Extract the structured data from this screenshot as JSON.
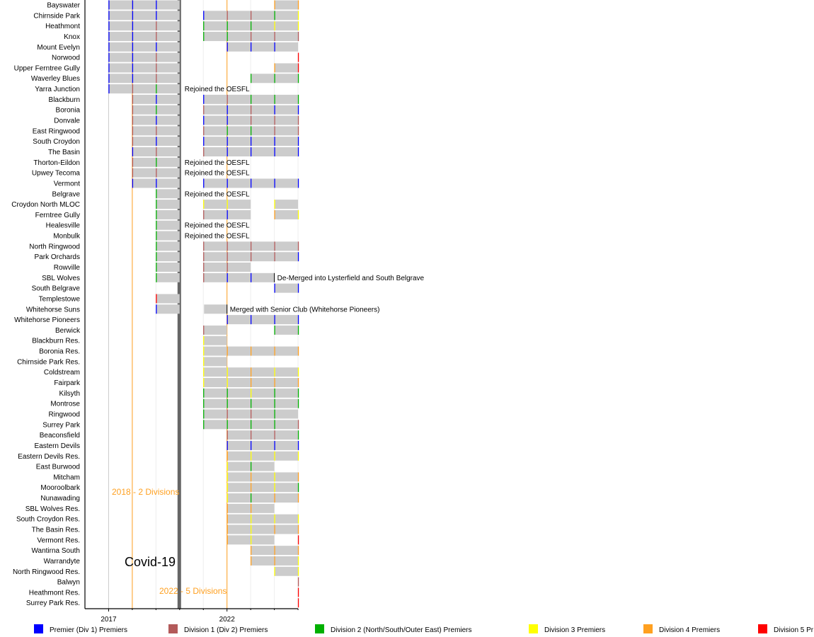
{
  "chart_data": {
    "type": "timeline",
    "xlim": [
      2016,
      2025
    ],
    "x_tick_labels": [
      "2017",
      "2022"
    ],
    "grid": true,
    "legend_placement": "bottom",
    "colors": {
      "B": "#0000ff",
      "M": "#b35a5a",
      "G": "#00b000",
      "Y": "#ffff00",
      "O": "#ffa020",
      "R": "#ff0000",
      "bar": "#cccccc",
      "covid": "#666666",
      "era_line": "#ffa020"
    },
    "legend": [
      {
        "code": "B",
        "label": "Premier (Div 1) Premiers"
      },
      {
        "code": "M",
        "label": "Division 1 (Div 2) Premiers"
      },
      {
        "code": "G",
        "label": "Division 2 (North/South/Outer East) Premiers"
      },
      {
        "code": "Y",
        "label": "Division 3 Premiers"
      },
      {
        "code": "O",
        "label": "Division 4 Premiers"
      },
      {
        "code": "R",
        "label": "Division 5 Pr"
      }
    ],
    "annotations": [
      {
        "text": "2018 - 2 Divisions",
        "year": 2018,
        "kind": "era"
      },
      {
        "text": "Covid-19",
        "year": 2020,
        "kind": "covid"
      },
      {
        "text": "2022 - 5 Divisions",
        "year": 2022,
        "kind": "era"
      }
    ],
    "rows": [
      {
        "club": "Bayswater",
        "seasons": [
          [
            2017,
            "B"
          ],
          [
            2018,
            "B"
          ],
          [
            2019,
            "B"
          ],
          [
            2024,
            "O"
          ]
        ],
        "end": "O"
      },
      {
        "club": "Chirnside Park",
        "seasons": [
          [
            2017,
            "B"
          ],
          [
            2018,
            "B"
          ],
          [
            2019,
            "B"
          ],
          [
            2021,
            "B"
          ],
          [
            2022,
            "M"
          ],
          [
            2023,
            "M"
          ],
          [
            2024,
            "G"
          ]
        ],
        "end": "Y"
      },
      {
        "club": "Heathmont",
        "seasons": [
          [
            2017,
            "B"
          ],
          [
            2018,
            "B"
          ],
          [
            2019,
            "M"
          ],
          [
            2021,
            "G"
          ],
          [
            2022,
            "G"
          ],
          [
            2023,
            "G"
          ],
          [
            2024,
            "Y"
          ]
        ],
        "end": "Y"
      },
      {
        "club": "Knox",
        "seasons": [
          [
            2017,
            "B"
          ],
          [
            2018,
            "B"
          ],
          [
            2019,
            "M"
          ],
          [
            2021,
            "G"
          ],
          [
            2022,
            "G"
          ],
          [
            2023,
            "M"
          ],
          [
            2024,
            "M"
          ]
        ],
        "end": "M"
      },
      {
        "club": "Mount Evelyn",
        "seasons": [
          [
            2017,
            "B"
          ],
          [
            2018,
            "B"
          ],
          [
            2019,
            "B"
          ],
          [
            2022,
            "B"
          ],
          [
            2023,
            "B"
          ],
          [
            2024,
            "B"
          ]
        ]
      },
      {
        "club": "Norwood",
        "seasons": [
          [
            2017,
            "B"
          ],
          [
            2018,
            "B"
          ],
          [
            2019,
            "M"
          ]
        ],
        "end": "R"
      },
      {
        "club": "Upper Ferntree Gully",
        "seasons": [
          [
            2017,
            "B"
          ],
          [
            2018,
            "B"
          ],
          [
            2019,
            "M"
          ],
          [
            2024,
            "O"
          ]
        ],
        "end": "R"
      },
      {
        "club": "Waverley Blues",
        "seasons": [
          [
            2017,
            "B"
          ],
          [
            2018,
            "B"
          ],
          [
            2019,
            "M"
          ],
          [
            2023,
            "G"
          ],
          [
            2024,
            "G"
          ]
        ],
        "end": "G"
      },
      {
        "club": "Yarra Junction",
        "seasons": [
          [
            2017,
            "B"
          ],
          [
            2018,
            "M"
          ],
          [
            2019,
            "G"
          ]
        ],
        "note": "Rejoined the OESFL"
      },
      {
        "club": "Blackburn",
        "seasons": [
          [
            2018,
            "M"
          ],
          [
            2019,
            "B"
          ],
          [
            2021,
            "B"
          ],
          [
            2022,
            "M"
          ],
          [
            2023,
            "G"
          ],
          [
            2024,
            "G"
          ]
        ],
        "end": "G"
      },
      {
        "club": "Boronia",
        "seasons": [
          [
            2018,
            "M"
          ],
          [
            2019,
            "G"
          ],
          [
            2021,
            "M"
          ],
          [
            2022,
            "B"
          ],
          [
            2023,
            "M"
          ],
          [
            2024,
            "B"
          ]
        ],
        "end": "B"
      },
      {
        "club": "Donvale",
        "seasons": [
          [
            2018,
            "M"
          ],
          [
            2019,
            "B"
          ],
          [
            2021,
            "B"
          ],
          [
            2022,
            "B"
          ],
          [
            2023,
            "M"
          ],
          [
            2024,
            "M"
          ]
        ],
        "end": "M"
      },
      {
        "club": "East Ringwood",
        "seasons": [
          [
            2018,
            "M"
          ],
          [
            2019,
            "M"
          ],
          [
            2021,
            "M"
          ],
          [
            2022,
            "G"
          ],
          [
            2023,
            "G"
          ],
          [
            2024,
            "M"
          ]
        ],
        "end": "M"
      },
      {
        "club": "South Croydon",
        "seasons": [
          [
            2018,
            "M"
          ],
          [
            2019,
            "B"
          ],
          [
            2021,
            "B"
          ],
          [
            2022,
            "B"
          ],
          [
            2023,
            "B"
          ],
          [
            2024,
            "B"
          ]
        ],
        "end": "B"
      },
      {
        "club": "The Basin",
        "seasons": [
          [
            2018,
            "B"
          ],
          [
            2019,
            "M"
          ],
          [
            2021,
            "M"
          ],
          [
            2022,
            "B"
          ],
          [
            2023,
            "B"
          ],
          [
            2024,
            "B"
          ]
        ],
        "end": "B"
      },
      {
        "club": "Thorton-Eildon",
        "seasons": [
          [
            2018,
            "M"
          ],
          [
            2019,
            "G"
          ]
        ],
        "note": "Rejoined the OESFL"
      },
      {
        "club": "Upwey Tecoma",
        "seasons": [
          [
            2018,
            "M"
          ],
          [
            2019,
            "M"
          ]
        ],
        "note": "Rejoined the OESFL"
      },
      {
        "club": "Vermont",
        "seasons": [
          [
            2018,
            "B"
          ],
          [
            2019,
            "B"
          ],
          [
            2021,
            "B"
          ],
          [
            2022,
            "B"
          ],
          [
            2023,
            "B"
          ],
          [
            2024,
            "B"
          ]
        ],
        "end": "B"
      },
      {
        "club": "Belgrave",
        "seasons": [
          [
            2019,
            "G"
          ]
        ],
        "note": "Rejoined the OESFL"
      },
      {
        "club": "Croydon North MLOC",
        "seasons": [
          [
            2019,
            "G"
          ],
          [
            2021,
            "Y"
          ],
          [
            2022,
            "Y"
          ],
          [
            2024,
            "Y"
          ]
        ]
      },
      {
        "club": "Ferntree Gully",
        "seasons": [
          [
            2019,
            "G"
          ],
          [
            2021,
            "M"
          ],
          [
            2022,
            "B"
          ],
          [
            2024,
            "O"
          ]
        ],
        "end": "Y"
      },
      {
        "club": "Healesville",
        "seasons": [
          [
            2019,
            "G"
          ]
        ],
        "note": "Rejoined the OESFL"
      },
      {
        "club": "Monbulk",
        "seasons": [
          [
            2019,
            "G"
          ]
        ],
        "note": "Rejoined the OESFL"
      },
      {
        "club": "North Ringwood",
        "seasons": [
          [
            2019,
            "G"
          ],
          [
            2021,
            "M"
          ],
          [
            2022,
            "M"
          ],
          [
            2023,
            "M"
          ],
          [
            2024,
            "M"
          ]
        ],
        "end": "M"
      },
      {
        "club": "Park Orchards",
        "seasons": [
          [
            2019,
            "G"
          ],
          [
            2021,
            "M"
          ],
          [
            2022,
            "M"
          ],
          [
            2023,
            "M"
          ],
          [
            2024,
            "M"
          ]
        ],
        "end": "B"
      },
      {
        "club": "Rowville",
        "seasons": [
          [
            2019,
            "G"
          ],
          [
            2021,
            "M"
          ],
          [
            2022,
            "M"
          ]
        ]
      },
      {
        "club": "SBL Wolves",
        "seasons": [
          [
            2019,
            "G"
          ],
          [
            2021,
            "M"
          ],
          [
            2022,
            "B"
          ],
          [
            2023,
            "B"
          ]
        ],
        "stop": true,
        "note": "De-Merged into Lysterfield and South Belgrave"
      },
      {
        "club": "South Belgrave",
        "seasons": [
          [
            2024,
            "B"
          ]
        ],
        "end": "B"
      },
      {
        "club": "Templestowe",
        "seasons": [
          [
            2019,
            "R"
          ]
        ]
      },
      {
        "club": "Whitehorse Suns",
        "seasons": [
          [
            2019,
            "B"
          ],
          [
            2021,
            ""
          ]
        ],
        "stop": true,
        "note": "Merged with Senior Club (Whitehorse Pioneers)"
      },
      {
        "club": "Whitehorse Pioneers",
        "seasons": [
          [
            2022,
            "B"
          ],
          [
            2023,
            "B"
          ],
          [
            2024,
            "B"
          ]
        ],
        "end": "B"
      },
      {
        "club": "Berwick",
        "seasons": [
          [
            2021,
            "M"
          ],
          [
            2024,
            "G"
          ]
        ],
        "end": "G"
      },
      {
        "club": "Blackburn Res.",
        "seasons": [
          [
            2021,
            "Y"
          ]
        ]
      },
      {
        "club": "Boronia Res.",
        "seasons": [
          [
            2021,
            "Y"
          ],
          [
            2022,
            "O"
          ],
          [
            2023,
            "O"
          ],
          [
            2024,
            "O"
          ]
        ],
        "end": "O"
      },
      {
        "club": "Chirnside Park Res.",
        "seasons": [
          [
            2021,
            "Y"
          ]
        ]
      },
      {
        "club": "Coldstream",
        "seasons": [
          [
            2021,
            "Y"
          ],
          [
            2022,
            "Y"
          ],
          [
            2023,
            "O"
          ],
          [
            2024,
            "Y"
          ]
        ],
        "end": "Y"
      },
      {
        "club": "Fairpark",
        "seasons": [
          [
            2021,
            "Y"
          ],
          [
            2022,
            "Y"
          ],
          [
            2023,
            "O"
          ],
          [
            2024,
            "O"
          ]
        ],
        "end": "O"
      },
      {
        "club": "Kilsyth",
        "seasons": [
          [
            2021,
            "G"
          ],
          [
            2022,
            "G"
          ],
          [
            2023,
            "Y"
          ],
          [
            2024,
            "G"
          ]
        ],
        "end": "G"
      },
      {
        "club": "Montrose",
        "seasons": [
          [
            2021,
            "G"
          ],
          [
            2022,
            "G"
          ],
          [
            2023,
            "G"
          ],
          [
            2024,
            "G"
          ]
        ],
        "end": "G"
      },
      {
        "club": "Ringwood",
        "seasons": [
          [
            2021,
            "G"
          ],
          [
            2022,
            "M"
          ],
          [
            2023,
            "M"
          ],
          [
            2024,
            "G"
          ]
        ]
      },
      {
        "club": "Surrey Park",
        "seasons": [
          [
            2021,
            "G"
          ],
          [
            2022,
            "G"
          ],
          [
            2023,
            "G"
          ],
          [
            2024,
            "G"
          ]
        ],
        "end": "M"
      },
      {
        "club": "Beaconsfield",
        "seasons": [
          [
            2022,
            "M"
          ],
          [
            2023,
            "M"
          ],
          [
            2024,
            "M"
          ]
        ],
        "end": "G"
      },
      {
        "club": "Eastern Devils",
        "seasons": [
          [
            2022,
            "B"
          ],
          [
            2023,
            "B"
          ],
          [
            2024,
            "B"
          ]
        ],
        "end": "B"
      },
      {
        "club": "Eastern Devils Res.",
        "seasons": [
          [
            2022,
            "O"
          ],
          [
            2023,
            "Y"
          ],
          [
            2024,
            "Y"
          ]
        ],
        "end": "Y"
      },
      {
        "club": "East Burwood",
        "seasons": [
          [
            2022,
            "Y"
          ],
          [
            2023,
            "G"
          ]
        ]
      },
      {
        "club": "Mitcham",
        "seasons": [
          [
            2022,
            "Y"
          ],
          [
            2023,
            "O"
          ],
          [
            2024,
            "Y"
          ]
        ],
        "end": "O"
      },
      {
        "club": "Mooroolbark",
        "seasons": [
          [
            2022,
            "Y"
          ],
          [
            2023,
            "O"
          ],
          [
            2024,
            "Y"
          ]
        ],
        "end": "G"
      },
      {
        "club": "Nunawading",
        "seasons": [
          [
            2022,
            "Y"
          ],
          [
            2023,
            "G"
          ],
          [
            2024,
            "O"
          ]
        ],
        "end": "O"
      },
      {
        "club": "SBL Wolves Res.",
        "seasons": [
          [
            2022,
            "O"
          ],
          [
            2023,
            "O"
          ]
        ]
      },
      {
        "club": "South Croydon Res.",
        "seasons": [
          [
            2022,
            "O"
          ],
          [
            2023,
            "Y"
          ],
          [
            2024,
            "Y"
          ]
        ],
        "end": "Y"
      },
      {
        "club": "The Basin Res.",
        "seasons": [
          [
            2022,
            "O"
          ],
          [
            2023,
            "Y"
          ],
          [
            2024,
            "O"
          ]
        ],
        "end": "O"
      },
      {
        "club": "Vermont Res.",
        "seasons": [
          [
            2022,
            "O"
          ],
          [
            2023,
            "Y"
          ]
        ],
        "end": "R"
      },
      {
        "club": "Wantirna South",
        "seasons": [
          [
            2023,
            "O"
          ],
          [
            2024,
            "O"
          ]
        ],
        "end": "O"
      },
      {
        "club": "Warrandyte",
        "seasons": [
          [
            2023,
            "O"
          ],
          [
            2024,
            "O"
          ]
        ],
        "end": "Y"
      },
      {
        "club": "North Ringwood Res.",
        "seasons": [
          [
            2024,
            "Y"
          ]
        ],
        "end": "Y"
      },
      {
        "club": "Balwyn",
        "seasons": [],
        "end": "M"
      },
      {
        "club": "Heathmont Res.",
        "seasons": [],
        "end": "R"
      },
      {
        "club": "Surrey Park Res.",
        "seasons": [],
        "end": "R"
      }
    ]
  }
}
